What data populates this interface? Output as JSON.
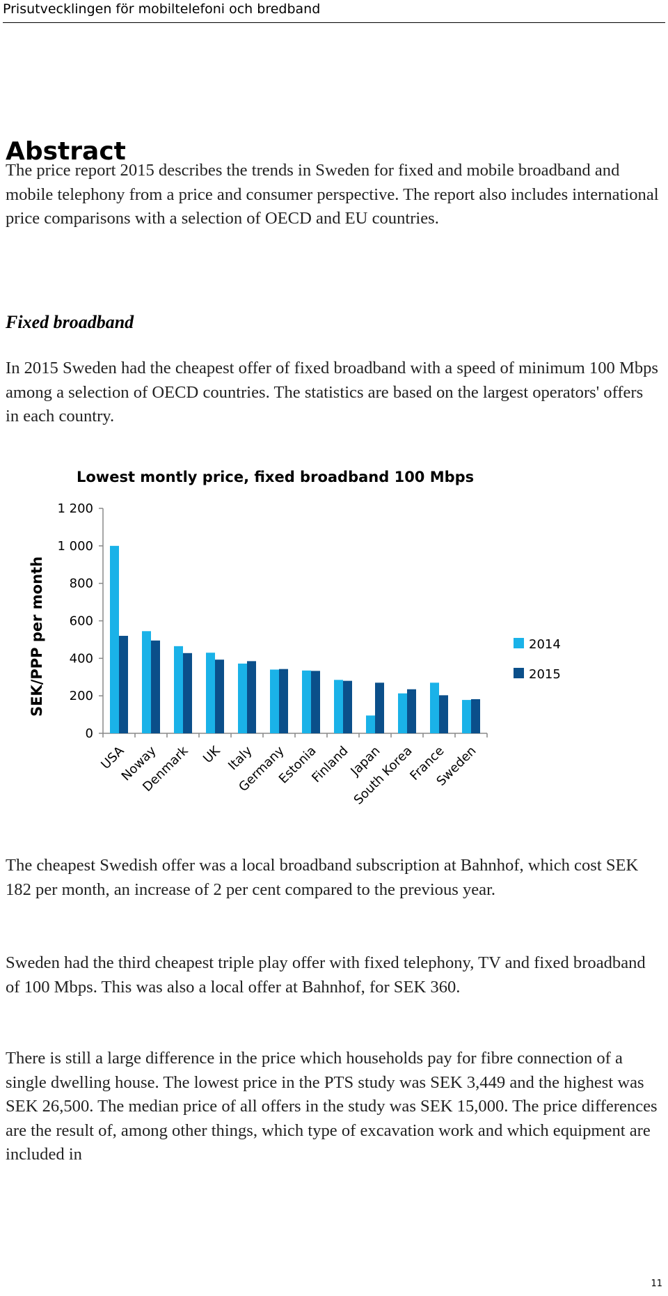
{
  "header": {
    "running_title": "Prisutvecklingen för mobiltelefoni och bredband"
  },
  "abstract": {
    "title": "Abstract",
    "paragraph1": "The price report 2015 describes the trends in Sweden for fixed and mobile broadband and mobile telephony from a price and consumer perspective. The report also includes international price comparisons with a selection of OECD and EU countries."
  },
  "fixed_broadband": {
    "heading": "Fixed broadband",
    "paragraph1": "In 2015 Sweden had the cheapest offer of fixed broadband with a speed of minimum 100 Mbps among a selection of OECD countries. The statistics are based on the largest operators' offers in each country.",
    "paragraph2": "The cheapest Swedish offer was a local broadband subscription at Bahnhof, which cost SEK 182 per month, an increase of 2 per cent compared to the previous year.",
    "paragraph3": "Sweden had the third cheapest triple play offer with fixed telephony, TV and fixed broadband of 100 Mbps. This was also a local offer at Bahnhof, for SEK 360.",
    "paragraph4": "There is still a large difference in the price which households pay for fibre connection of a single dwelling house. The lowest price in the PTS study was SEK 3,449 and the highest was SEK 26,500. The median price of all offers in the study was SEK 15,000. The price differences are the result of, among other things, which type of excavation work and which equipment are included in"
  },
  "chart_data": {
    "type": "bar",
    "title": "Lowest montly price, fixed broadband 100 Mbps",
    "xlabel": "",
    "ylabel": "SEK/PPP per month",
    "ylim": [
      0,
      1200
    ],
    "yticks": [
      0,
      200,
      400,
      600,
      800,
      1000,
      1200
    ],
    "ytick_labels": [
      "0",
      "200",
      "400",
      "600",
      "800",
      "1 000",
      "1 200"
    ],
    "grid": false,
    "legend_position": "right",
    "categories": [
      "USA",
      "Noway",
      "Denmark",
      "UK",
      "Italy",
      "Germany",
      "Estonia",
      "Finland",
      "Japan",
      "South Korea",
      "France",
      "Sweden"
    ],
    "series": [
      {
        "name": "2014",
        "color": "#1ab2e8",
        "values": [
          1000,
          545,
          465,
          430,
          372,
          340,
          335,
          285,
          95,
          213,
          270,
          178
        ]
      },
      {
        "name": "2015",
        "color": "#0b4f8a",
        "values": [
          520,
          495,
          428,
          393,
          385,
          343,
          333,
          280,
          270,
          235,
          203,
          182
        ]
      }
    ]
  },
  "footer": {
    "page_number": "11"
  }
}
